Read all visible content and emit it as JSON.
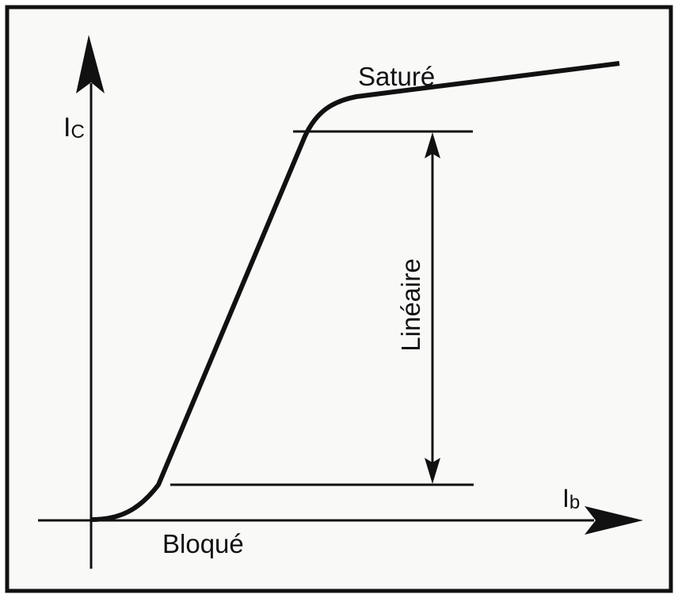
{
  "axes": {
    "y_label": {
      "main": "I",
      "sub": "C"
    },
    "x_label": {
      "main": "I",
      "sub": "b"
    }
  },
  "regions": {
    "saturated": "Saturé",
    "linear": "Linéaire",
    "cutoff": "Bloqué"
  }
}
